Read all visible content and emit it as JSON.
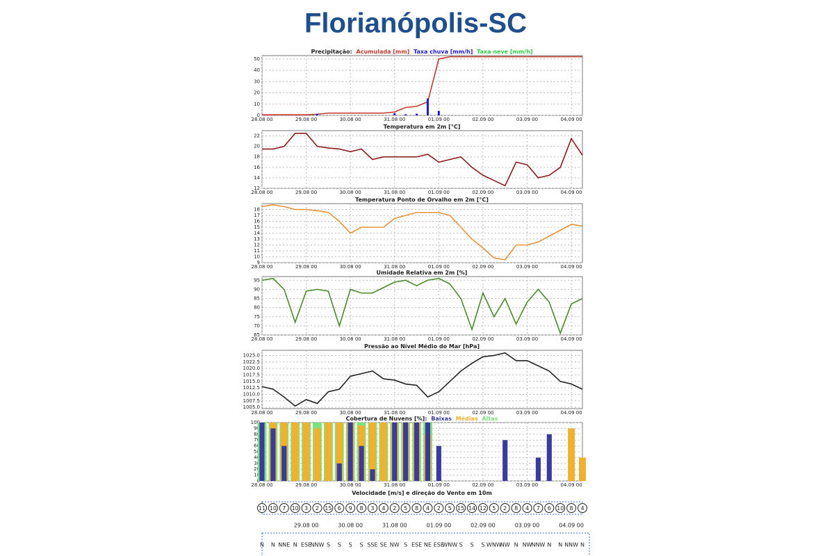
{
  "title": "Florianópolis-SC",
  "chart_data": [
    {
      "type": "precip",
      "title": "Precipitação:",
      "x": [
        0,
        6,
        12,
        18,
        24,
        30,
        36,
        42,
        48,
        54,
        60,
        66,
        72,
        78,
        84,
        90,
        96,
        102,
        108,
        114,
        120,
        126,
        132,
        138,
        144,
        150,
        156,
        162,
        168,
        174
      ],
      "xlim": [
        0,
        174
      ],
      "xticks": [
        {
          "value": 0,
          "label": "28.08 00"
        },
        {
          "value": 24,
          "label": "29.08 00"
        },
        {
          "value": 48,
          "label": "30.08 00"
        },
        {
          "value": 72,
          "label": "31.08 00"
        },
        {
          "value": 96,
          "label": "01.09 00"
        },
        {
          "value": 120,
          "label": "02.09 00"
        },
        {
          "value": 144,
          "label": "03.09 00"
        },
        {
          "value": 168,
          "label": "04.09 00"
        }
      ],
      "ylim": [
        0,
        53
      ],
      "yticks": [
        0,
        10,
        20,
        30,
        40,
        50
      ],
      "grid": true,
      "series": [
        {
          "name": "Acumulada [mm]",
          "color": "#c0392b",
          "mark": "line",
          "values": [
            0.5,
            0.5,
            0.5,
            0.5,
            0.5,
            1,
            2,
            2,
            2,
            2,
            2,
            2,
            3,
            7,
            8,
            12,
            50,
            52,
            52,
            52,
            52,
            52,
            52,
            52,
            52,
            52,
            52,
            52,
            52,
            52
          ]
        },
        {
          "name": "Taxa chuva [mm/h]",
          "color": "#1a1ad0",
          "mark": "bar",
          "values": [
            0,
            0,
            0,
            0,
            0,
            1.5,
            0,
            0,
            0,
            0,
            0,
            0,
            2,
            1,
            1.5,
            15,
            4,
            0,
            0,
            0,
            0,
            0,
            0,
            0,
            0,
            0,
            0,
            0,
            0,
            0
          ]
        },
        {
          "name": "Taxa neve [mm/h]",
          "color": "#2ecc40",
          "mark": "bar",
          "values": [
            0,
            0,
            0,
            0,
            0,
            0,
            0,
            0,
            0,
            0,
            0,
            0,
            0,
            0,
            0,
            0,
            0,
            0,
            0,
            0,
            0,
            0,
            0,
            0,
            0,
            0,
            0,
            0,
            0,
            0
          ]
        }
      ]
    },
    {
      "type": "line",
      "title": "Temperatura em 2m [°C]",
      "color": "#8b1a1a",
      "x": [
        0,
        6,
        12,
        18,
        24,
        30,
        36,
        42,
        48,
        54,
        60,
        66,
        72,
        78,
        84,
        90,
        96,
        102,
        108,
        114,
        120,
        126,
        132,
        138,
        144,
        150,
        156,
        162,
        168,
        174
      ],
      "xlim": [
        0,
        174
      ],
      "xticks": [
        {
          "value": 0,
          "label": "28.08 00"
        },
        {
          "value": 24,
          "label": "29.08 00"
        },
        {
          "value": 48,
          "label": "30.08 00"
        },
        {
          "value": 72,
          "label": "31.08 00"
        },
        {
          "value": 96,
          "label": "01.09 00"
        },
        {
          "value": 120,
          "label": "02.09 00"
        },
        {
          "value": 144,
          "label": "03.09 00"
        },
        {
          "value": 168,
          "label": "04.09 00"
        }
      ],
      "ylim": [
        12,
        23
      ],
      "yticks": [
        12,
        14,
        16,
        18,
        20,
        22
      ],
      "grid": true,
      "values": [
        19.5,
        19.5,
        20,
        22.5,
        22.5,
        20,
        19.7,
        19.5,
        19,
        19.5,
        17.5,
        18,
        18,
        18,
        18,
        18.5,
        17,
        17.5,
        18,
        16,
        14.5,
        13.5,
        12.5,
        17,
        16.5,
        14,
        14.5,
        16,
        21.5,
        18.3
      ]
    },
    {
      "type": "line",
      "title": "Temperatura Ponto de Orvalho em 2m [°C]",
      "color": "#e8933a",
      "x": [
        0,
        6,
        12,
        18,
        24,
        30,
        36,
        42,
        48,
        54,
        60,
        66,
        72,
        78,
        84,
        90,
        96,
        102,
        108,
        114,
        120,
        126,
        132,
        138,
        144,
        150,
        156,
        162,
        168,
        174
      ],
      "xlim": [
        0,
        174
      ],
      "xticks": [
        {
          "value": 0,
          "label": "28.08 00"
        },
        {
          "value": 24,
          "label": "29.08 00"
        },
        {
          "value": 48,
          "label": "30.08 00"
        },
        {
          "value": 72,
          "label": "31.08 00"
        },
        {
          "value": 96,
          "label": "01.09 00"
        },
        {
          "value": 120,
          "label": "02.09 00"
        },
        {
          "value": 144,
          "label": "03.09 00"
        },
        {
          "value": 168,
          "label": "04.09 00"
        }
      ],
      "ylim": [
        9,
        19
      ],
      "yticks": [
        9,
        10,
        11,
        12,
        13,
        14,
        15,
        16,
        17,
        18
      ],
      "grid": true,
      "values": [
        18.5,
        18.8,
        18.5,
        18,
        18,
        17.8,
        17.5,
        16,
        14,
        15,
        15,
        15,
        16.5,
        17,
        17.5,
        17.5,
        17.5,
        17,
        15,
        13,
        11.5,
        9.8,
        9.5,
        12,
        12,
        12.5,
        13.5,
        14.5,
        15.5,
        15.2
      ]
    },
    {
      "type": "line",
      "title": "Umidade Relativa em 2m [%]",
      "color": "#4a8a2a",
      "x": [
        0,
        6,
        12,
        18,
        24,
        30,
        36,
        42,
        48,
        54,
        60,
        66,
        72,
        78,
        84,
        90,
        96,
        102,
        108,
        114,
        120,
        126,
        132,
        138,
        144,
        150,
        156,
        162,
        168,
        174
      ],
      "xlim": [
        0,
        174
      ],
      "xticks": [
        {
          "value": 0,
          "label": "28.08 00"
        },
        {
          "value": 24,
          "label": "29.08 00"
        },
        {
          "value": 48,
          "label": "30.08 00"
        },
        {
          "value": 72,
          "label": "31.08 00"
        },
        {
          "value": 96,
          "label": "01.09 00"
        },
        {
          "value": 120,
          "label": "02.09 00"
        },
        {
          "value": 144,
          "label": "03.09 00"
        },
        {
          "value": 168,
          "label": "04.09 00"
        }
      ],
      "ylim": [
        65,
        97
      ],
      "yticks": [
        65,
        70,
        75,
        80,
        85,
        90,
        95
      ],
      "grid": true,
      "values": [
        95,
        96,
        90,
        72,
        89,
        90,
        89,
        70,
        90,
        88,
        88,
        91,
        94,
        95,
        92,
        95,
        96,
        93,
        85,
        68,
        88,
        75,
        85,
        71,
        83,
        90,
        83,
        66,
        82,
        85
      ]
    },
    {
      "type": "line",
      "title": "Pressão ao Nível Médio do Mar [hPa]",
      "color": "#222222",
      "x": [
        0,
        6,
        12,
        18,
        24,
        30,
        36,
        42,
        48,
        54,
        60,
        66,
        72,
        78,
        84,
        90,
        96,
        102,
        108,
        114,
        120,
        126,
        132,
        138,
        144,
        150,
        156,
        162,
        168,
        174
      ],
      "xlim": [
        0,
        174
      ],
      "xticks": [
        {
          "value": 0,
          "label": "28.08 00"
        },
        {
          "value": 24,
          "label": "29.08 00"
        },
        {
          "value": 48,
          "label": "30.08 00"
        },
        {
          "value": 72,
          "label": "31.08 00"
        },
        {
          "value": 96,
          "label": "01.09 00"
        },
        {
          "value": 120,
          "label": "02.09 00"
        },
        {
          "value": 144,
          "label": "03.09 00"
        },
        {
          "value": 168,
          "label": "04.09 00"
        }
      ],
      "ylim": [
        1004.5,
        1027
      ],
      "yticks": [
        {
          "value": 1005,
          "label": "1005.0"
        },
        {
          "value": 1007.5,
          "label": "1007.5"
        },
        {
          "value": 1010,
          "label": "1010.0"
        },
        {
          "value": 1012.5,
          "label": "1012.5"
        },
        {
          "value": 1015,
          "label": "1015.0"
        },
        {
          "value": 1017.5,
          "label": "1017.5"
        },
        {
          "value": 1020,
          "label": "1020.0"
        },
        {
          "value": 1022.5,
          "label": "1022.5"
        },
        {
          "value": 1025,
          "label": "1025.0"
        }
      ],
      "grid": true,
      "values": [
        1013,
        1012,
        1009,
        1005.5,
        1008,
        1006.5,
        1011,
        1012,
        1017,
        1018,
        1019,
        1016,
        1015.5,
        1014,
        1013.5,
        1009,
        1011,
        1015,
        1019,
        1022,
        1024.5,
        1025,
        1026,
        1023,
        1023,
        1021,
        1019,
        1015,
        1014,
        1012
      ]
    },
    {
      "type": "clouds",
      "title": "Cobertura de Nuvens [%]:",
      "x": [
        0,
        6,
        12,
        18,
        24,
        30,
        36,
        42,
        48,
        54,
        60,
        66,
        72,
        78,
        84,
        90,
        96,
        102,
        108,
        114,
        120,
        126,
        132,
        138,
        144,
        150,
        156,
        162,
        168,
        174
      ],
      "xlim": [
        0,
        174
      ],
      "xticks": [
        {
          "value": 0,
          "label": "28.08 00"
        },
        {
          "value": 24,
          "label": "29.08 00"
        },
        {
          "value": 48,
          "label": "30.08 00"
        },
        {
          "value": 72,
          "label": "31.08 00"
        },
        {
          "value": 96,
          "label": "01.09 00"
        },
        {
          "value": 120,
          "label": "02.09 00"
        },
        {
          "value": 144,
          "label": "03.09 00"
        },
        {
          "value": 168,
          "label": "04.09 00"
        }
      ],
      "ylim": [
        0,
        100
      ],
      "yticks": [
        0,
        10,
        20,
        30,
        40,
        50,
        60,
        70,
        80,
        90,
        100
      ],
      "grid": true,
      "series": [
        {
          "name": "Baixas",
          "color": "#3b3b9e",
          "values": [
            100,
            90,
            60,
            0,
            0,
            0,
            0,
            30,
            100,
            60,
            20,
            0,
            100,
            100,
            100,
            100,
            60,
            0,
            0,
            0,
            0,
            0,
            70,
            0,
            0,
            40,
            80,
            0,
            0,
            0
          ]
        },
        {
          "name": "Médias",
          "color": "#f0b030",
          "values": [
            0,
            100,
            100,
            100,
            100,
            90,
            100,
            100,
            100,
            95,
            100,
            100,
            100,
            100,
            100,
            80,
            0,
            0,
            0,
            0,
            0,
            0,
            0,
            0,
            0,
            0,
            0,
            0,
            90,
            40
          ]
        },
        {
          "name": "Altas",
          "color": "#7be37b",
          "values": [
            100,
            100,
            100,
            100,
            100,
            100,
            100,
            100,
            100,
            100,
            100,
            100,
            100,
            100,
            100,
            100,
            0,
            0,
            0,
            0,
            0,
            0,
            0,
            0,
            0,
            0,
            0,
            0,
            0,
            0
          ]
        }
      ]
    },
    {
      "type": "wind",
      "title": "Velocidade [m/s] e direção do Vento em 10m",
      "x": [
        0,
        6,
        12,
        18,
        24,
        30,
        36,
        42,
        48,
        54,
        60,
        66,
        72,
        78,
        84,
        90,
        96,
        102,
        108,
        114,
        120,
        126,
        132,
        138,
        144,
        150,
        156,
        162,
        168,
        174
      ],
      "xlim": [
        0,
        174
      ],
      "xticks": [
        {
          "value": 24,
          "label": "29.08 00"
        },
        {
          "value": 48,
          "label": "30.08 00"
        },
        {
          "value": 72,
          "label": "31.08 00"
        },
        {
          "value": 96,
          "label": "01.09 00"
        },
        {
          "value": 120,
          "label": "02.09 00"
        },
        {
          "value": 144,
          "label": "03.09 00"
        },
        {
          "value": 168,
          "label": "04.09 00"
        }
      ],
      "values": [
        11,
        10,
        7,
        10,
        3,
        2,
        15,
        6,
        9,
        8,
        3,
        4,
        2,
        5,
        8,
        4,
        2,
        5,
        15,
        14,
        12,
        5,
        2,
        8,
        4,
        7,
        6,
        10,
        8,
        4
      ],
      "directions": [
        "N",
        "N",
        "NNE",
        "N",
        "ESE",
        "NNW",
        "S",
        "S",
        "S",
        "S",
        "SSE",
        "SE",
        "NW",
        "S",
        "ESE",
        "NE",
        "ESE",
        "WNW",
        "S",
        "S",
        "S",
        "WNW",
        "NW",
        "N",
        "NW",
        "NNW",
        "N",
        "N",
        "NNW",
        "N"
      ]
    }
  ]
}
